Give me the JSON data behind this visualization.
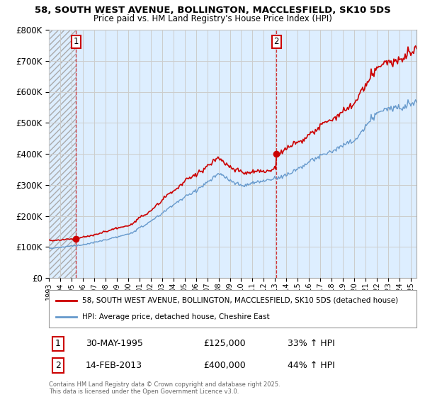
{
  "title_line1": "58, SOUTH WEST AVENUE, BOLLINGTON, MACCLESFIELD, SK10 5DS",
  "title_line2": "Price paid vs. HM Land Registry's House Price Index (HPI)",
  "legend_line1": "58, SOUTH WEST AVENUE, BOLLINGTON, MACCLESFIELD, SK10 5DS (detached house)",
  "legend_line2": "HPI: Average price, detached house, Cheshire East",
  "sale1_label": "1",
  "sale1_date": "30-MAY-1995",
  "sale1_price": "£125,000",
  "sale1_hpi": "33% ↑ HPI",
  "sale1_year": 1995.41,
  "sale1_value": 125000,
  "sale2_label": "2",
  "sale2_date": "14-FEB-2013",
  "sale2_price": "£400,000",
  "sale2_hpi": "44% ↑ HPI",
  "sale2_year": 2013.12,
  "sale2_value": 400000,
  "red_color": "#cc0000",
  "blue_color": "#6699cc",
  "plot_bg_color": "#ddeeff",
  "hatch_color": "#bbbbcc",
  "grid_color": "#cccccc",
  "ylim_min": 0,
  "ylim_max": 800000,
  "xlim_min": 1993,
  "xlim_max": 2025.5,
  "footnote": "Contains HM Land Registry data © Crown copyright and database right 2025.\nThis data is licensed under the Open Government Licence v3.0."
}
